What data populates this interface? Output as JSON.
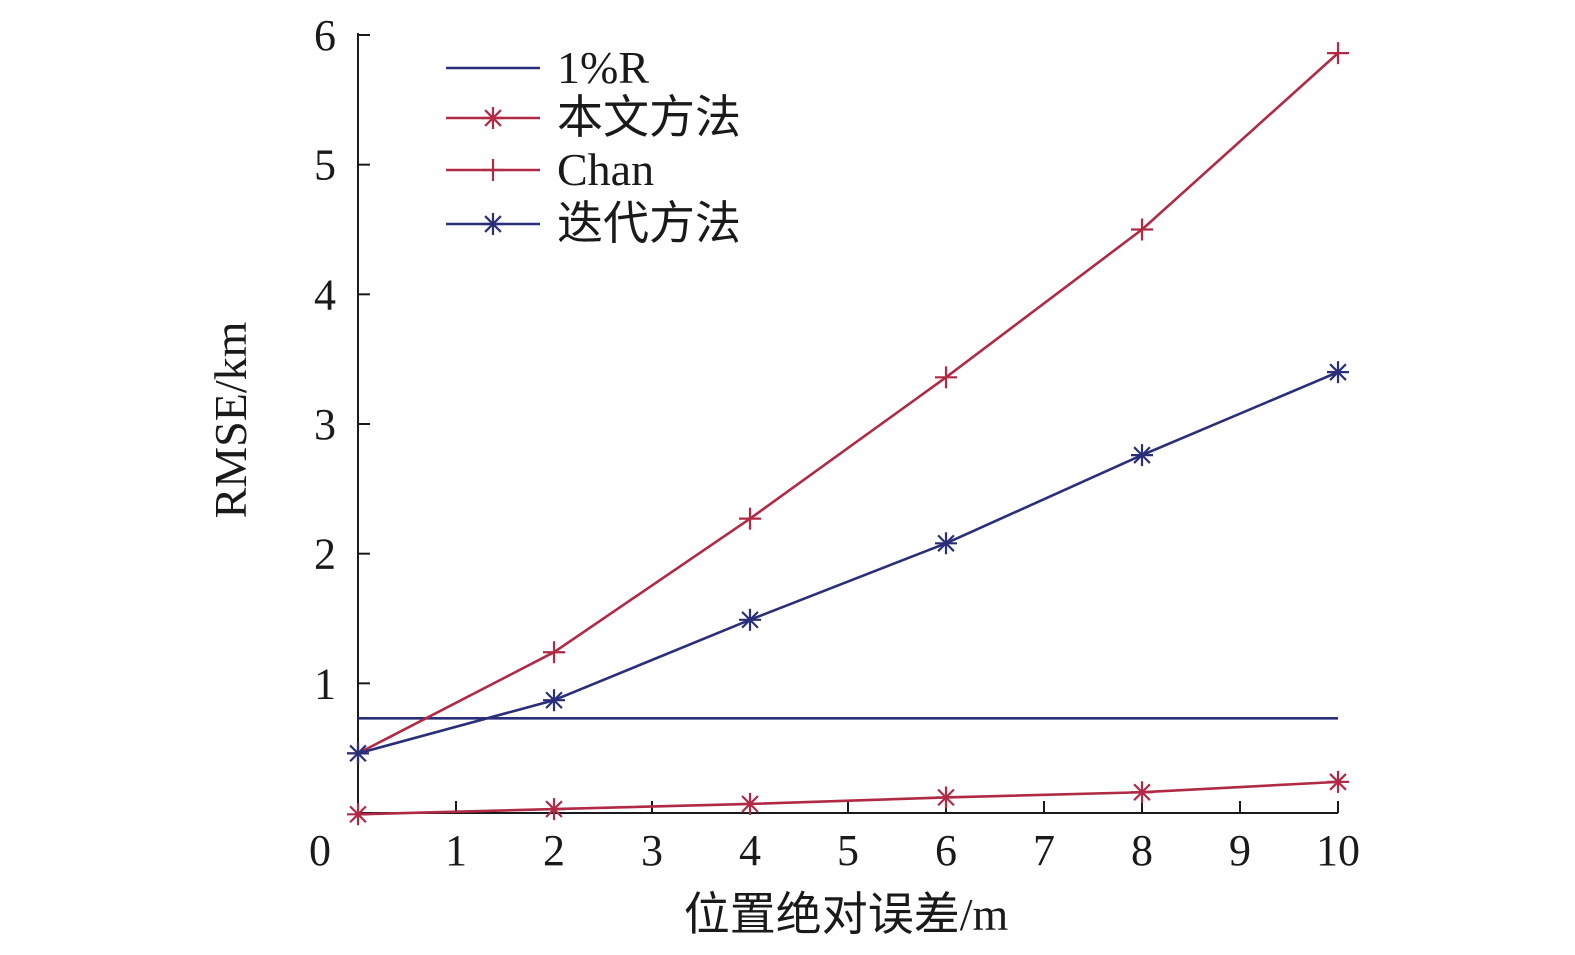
{
  "chart_data": {
    "type": "line",
    "xlabel": "位置绝对误差/m",
    "ylabel": "RMSE/km",
    "xlim": [
      0,
      10
    ],
    "ylim": [
      0,
      6
    ],
    "x_ticks": [
      0,
      1,
      2,
      3,
      4,
      5,
      6,
      7,
      8,
      9,
      10
    ],
    "y_ticks": [
      1,
      2,
      3,
      4,
      5,
      6
    ],
    "x_tick_labels": [
      "0",
      "1",
      "2",
      "3",
      "4",
      "5",
      "6",
      "7",
      "8",
      "9",
      "10"
    ],
    "y_tick_labels": [
      "1",
      "2",
      "3",
      "4",
      "5",
      "6"
    ],
    "legend_position": "top-left",
    "grid": false,
    "series": [
      {
        "name": "1%R",
        "color": "#2b2f7a",
        "marker": "none",
        "x": [
          0,
          10
        ],
        "y": [
          0.73,
          0.73
        ]
      },
      {
        "name": "本文方法",
        "color": "#b02a45",
        "marker": "asterisk",
        "x": [
          0,
          2,
          4,
          6,
          8,
          10
        ],
        "y": [
          -0.01,
          0.03,
          0.07,
          0.12,
          0.16,
          0.24
        ]
      },
      {
        "name": "Chan",
        "color": "#b02a45",
        "marker": "plus",
        "x": [
          0,
          2,
          4,
          6,
          8,
          10
        ],
        "y": [
          0.46,
          1.24,
          2.27,
          3.36,
          4.5,
          5.86
        ]
      },
      {
        "name": "迭代方法",
        "color": "#2b2f7a",
        "marker": "asterisk",
        "x": [
          0,
          2,
          4,
          6,
          8,
          10
        ],
        "y": [
          0.46,
          0.87,
          1.49,
          2.08,
          2.76,
          3.4
        ]
      }
    ]
  }
}
